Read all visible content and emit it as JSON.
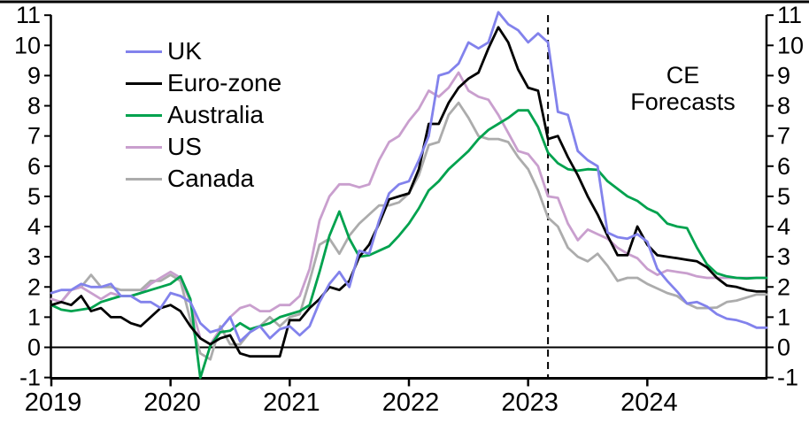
{
  "chart_data": {
    "type": "line",
    "title": "",
    "frequency": "monthly",
    "x_start": "2019-01",
    "x_end": "2024-12",
    "x_tick_labels": [
      "2019",
      "2020",
      "2021",
      "2022",
      "2023",
      "2024"
    ],
    "y_ticks": [
      -1,
      0,
      1,
      2,
      3,
      4,
      5,
      6,
      7,
      8,
      9,
      10,
      11
    ],
    "ylim": [
      -1,
      11
    ],
    "y_axis_right_mirrored": true,
    "zero_line": true,
    "grid": false,
    "legend_position": "top-left-inside",
    "forecast_divider": {
      "style": "vertical-dashed",
      "x_month": "2023-03",
      "month_index": 50
    },
    "annotation": {
      "line1": "CE",
      "line2": "Forecasts"
    },
    "axis_color": "#000000",
    "background_color": "#ffffff",
    "series": [
      {
        "name": "UK",
        "color": "#8282EC",
        "values": [
          1.8,
          1.9,
          1.9,
          2.1,
          2.0,
          2.0,
          2.1,
          1.7,
          1.7,
          1.5,
          1.5,
          1.3,
          1.8,
          1.7,
          1.5,
          0.8,
          0.5,
          0.6,
          1.0,
          0.2,
          0.5,
          0.7,
          0.3,
          0.6,
          0.7,
          0.4,
          0.7,
          1.5,
          2.1,
          2.5,
          2.0,
          3.2,
          3.1,
          4.2,
          5.1,
          5.4,
          5.5,
          6.2,
          7.0,
          9.0,
          9.1,
          9.4,
          10.1,
          9.9,
          10.1,
          11.1,
          10.7,
          10.5,
          10.1,
          10.4,
          10.1,
          7.8,
          7.7,
          6.5,
          6.2,
          6.0,
          3.8,
          3.65,
          3.6,
          3.75,
          3.5,
          2.6,
          2.2,
          1.85,
          1.45,
          1.5,
          1.35,
          1.1,
          0.95,
          0.9,
          0.8,
          0.65
        ]
      },
      {
        "name": "Euro-zone",
        "color": "#000000",
        "values": [
          1.4,
          1.5,
          1.4,
          1.7,
          1.2,
          1.3,
          1.0,
          1.0,
          0.8,
          0.7,
          1.0,
          1.3,
          1.4,
          1.2,
          0.7,
          0.3,
          0.1,
          0.3,
          0.4,
          -0.2,
          -0.3,
          -0.3,
          -0.3,
          -0.3,
          0.9,
          0.9,
          1.3,
          1.6,
          2.0,
          1.9,
          2.2,
          3.0,
          3.4,
          4.1,
          4.9,
          5.0,
          5.1,
          5.9,
          7.4,
          7.4,
          8.1,
          8.6,
          8.9,
          9.1,
          9.9,
          10.6,
          10.1,
          9.2,
          8.6,
          8.5,
          6.9,
          7.0,
          6.3,
          5.7,
          5.0,
          4.4,
          3.7,
          3.05,
          3.05,
          4.0,
          3.4,
          3.05,
          3.0,
          2.95,
          2.9,
          2.85,
          2.65,
          2.3,
          2.05,
          2.0,
          1.9,
          1.85
        ]
      },
      {
        "name": "Australia",
        "color": "#00A24E",
        "values": [
          1.4,
          1.25,
          1.2,
          1.25,
          1.3,
          1.5,
          1.6,
          1.7,
          1.7,
          1.8,
          1.9,
          2.0,
          2.1,
          2.35,
          1.6,
          -1.05,
          0.05,
          0.5,
          0.55,
          0.8,
          0.6,
          0.7,
          0.8,
          1.0,
          1.1,
          1.2,
          1.4,
          2.5,
          3.7,
          4.5,
          3.6,
          3.0,
          3.05,
          3.2,
          3.35,
          3.7,
          4.1,
          4.6,
          5.2,
          5.5,
          5.9,
          6.2,
          6.5,
          6.9,
          7.2,
          7.4,
          7.6,
          7.85,
          7.85,
          7.3,
          6.45,
          6.1,
          5.9,
          5.85,
          5.9,
          5.88,
          5.5,
          5.25,
          5.0,
          4.85,
          4.6,
          4.45,
          4.1,
          4.0,
          3.95,
          3.3,
          2.75,
          2.45,
          2.35,
          2.3,
          2.28,
          2.3
        ]
      },
      {
        "name": "US",
        "color": "#C99FCE",
        "values": [
          1.6,
          1.5,
          1.9,
          2.0,
          1.8,
          1.6,
          1.8,
          1.7,
          1.7,
          1.8,
          2.1,
          2.3,
          2.5,
          2.3,
          1.5,
          0.3,
          0.1,
          0.6,
          1.0,
          1.3,
          1.4,
          1.2,
          1.2,
          1.4,
          1.4,
          1.7,
          2.6,
          4.2,
          5.0,
          5.4,
          5.4,
          5.3,
          5.4,
          6.2,
          6.8,
          7.0,
          7.5,
          7.9,
          8.5,
          8.3,
          8.6,
          9.1,
          8.5,
          8.3,
          8.2,
          7.7,
          7.1,
          6.5,
          6.4,
          6.0,
          5.0,
          4.95,
          4.1,
          3.55,
          3.9,
          3.75,
          3.6,
          3.3,
          3.1,
          2.95,
          2.6,
          2.4,
          2.55,
          2.5,
          2.45,
          2.35,
          2.3,
          2.3,
          2.3,
          2.3,
          2.3,
          2.3
        ]
      },
      {
        "name": "Canada",
        "color": "#ACACAC",
        "values": [
          1.4,
          1.5,
          1.9,
          2.0,
          2.4,
          2.0,
          2.0,
          1.9,
          1.9,
          1.9,
          2.2,
          2.2,
          2.4,
          2.2,
          0.9,
          -0.2,
          -0.4,
          0.7,
          0.1,
          0.1,
          0.5,
          0.7,
          1.0,
          0.7,
          1.0,
          1.1,
          2.2,
          3.4,
          3.6,
          3.1,
          3.7,
          4.1,
          4.4,
          4.7,
          4.7,
          4.8,
          5.1,
          5.7,
          6.7,
          6.8,
          7.7,
          8.1,
          7.6,
          7.0,
          6.9,
          6.9,
          6.8,
          6.3,
          5.9,
          5.2,
          4.3,
          4.0,
          3.3,
          3.0,
          2.85,
          3.1,
          2.7,
          2.2,
          2.3,
          2.3,
          2.1,
          1.95,
          1.8,
          1.7,
          1.45,
          1.3,
          1.3,
          1.32,
          1.5,
          1.55,
          1.65,
          1.75
        ]
      }
    ]
  }
}
